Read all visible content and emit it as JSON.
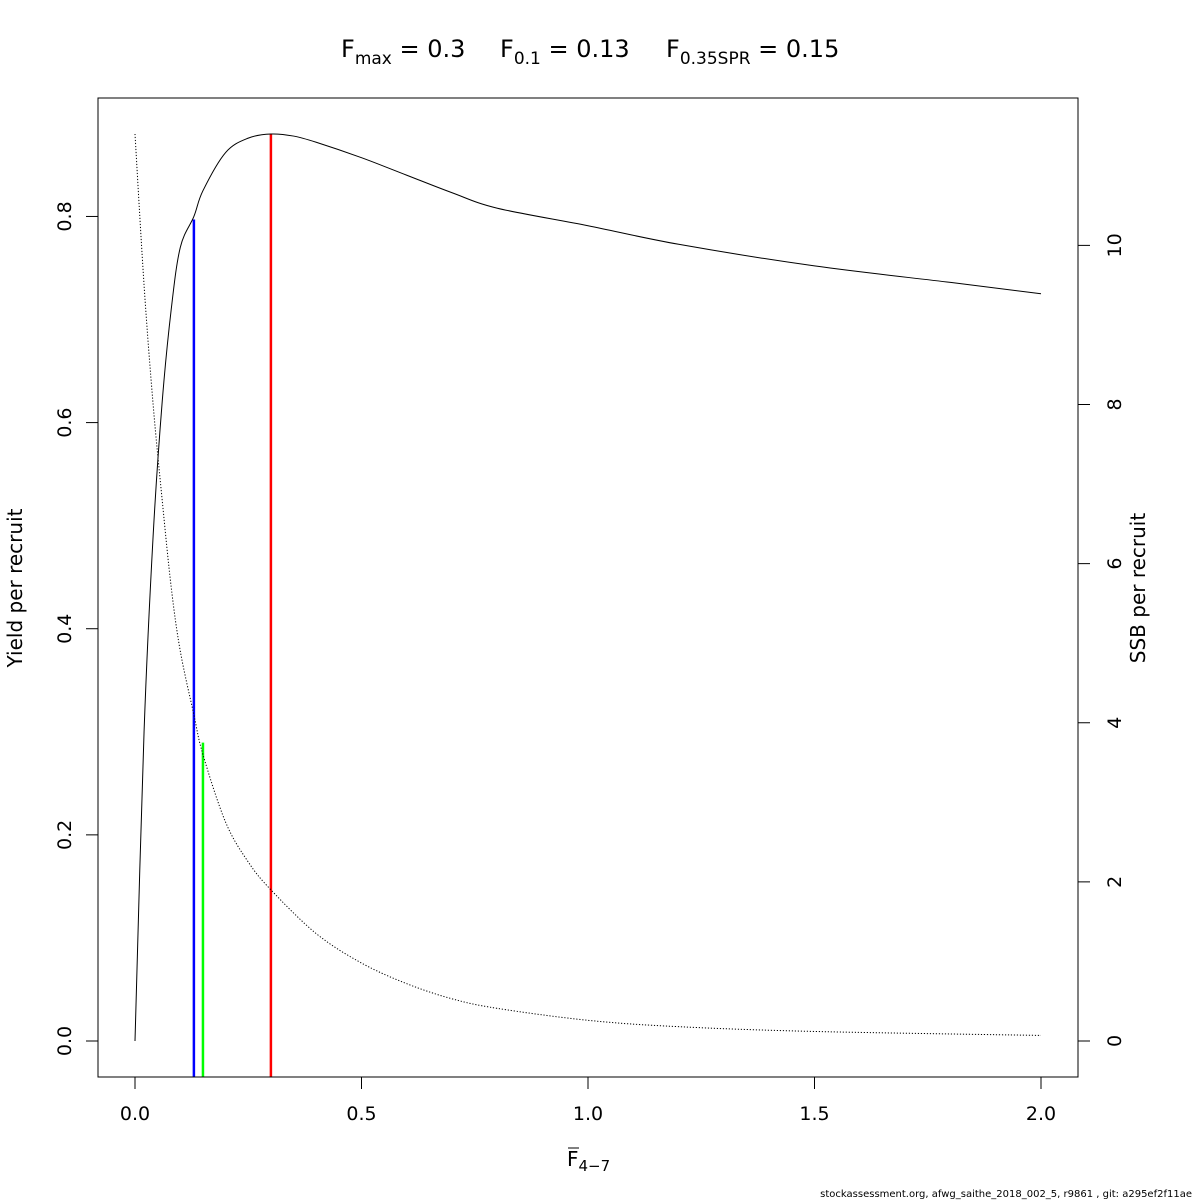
{
  "title": {
    "fmax": {
      "symbol": "F",
      "sub": "max",
      "text": " = 0.3"
    },
    "f01": {
      "symbol": "F",
      "sub": "0.1",
      "text": " = 0.13"
    },
    "fspr": {
      "symbol": "F",
      "sub": "0.35SPR",
      "text": " = 0.15"
    }
  },
  "axes": {
    "xlabel": {
      "symbol": "F",
      "sub": "4−7"
    },
    "ylabel_left": "Yield per recruit",
    "ylabel_right": "SSB per recruit"
  },
  "footer": "stockassessment.org, afwg_saithe_2018_002_5, r9861 , git: a295ef2f11ae",
  "colors": {
    "axis": "#000000",
    "fmax": "#ff0000",
    "f01": "#0000ff",
    "fspr": "#00ff00"
  },
  "chart_data": {
    "type": "line",
    "x_range": [
      0,
      2
    ],
    "x_ticks": [
      "0.0",
      "0.5",
      "1.0",
      "1.5",
      "2.0"
    ],
    "y_left_range": [
      0,
      0.88
    ],
    "y_left_ticks": [
      "0.0",
      "0.2",
      "0.4",
      "0.6",
      "0.8"
    ],
    "y_right_range": [
      0,
      11.4
    ],
    "y_right_ticks": [
      "0",
      "2",
      "4",
      "6",
      "8",
      "10"
    ],
    "series": [
      {
        "axis": "left",
        "style": "solid",
        "x": [
          0,
          0.02,
          0.04,
          0.06,
          0.08,
          0.1,
          0.13,
          0.15,
          0.2,
          0.25,
          0.3,
          0.35,
          0.4,
          0.5,
          0.6,
          0.7,
          0.8,
          1.0,
          1.2,
          1.5,
          1.8,
          2.0
        ],
        "y": [
          0,
          0.3,
          0.49,
          0.62,
          0.71,
          0.77,
          0.8,
          0.825,
          0.862,
          0.876,
          0.88,
          0.878,
          0.872,
          0.857,
          0.84,
          0.823,
          0.808,
          0.791,
          0.773,
          0.752,
          0.736,
          0.725
        ]
      },
      {
        "axis": "right",
        "style": "dotted",
        "x": [
          0,
          0.02,
          0.04,
          0.06,
          0.08,
          0.1,
          0.13,
          0.15,
          0.2,
          0.25,
          0.3,
          0.4,
          0.5,
          0.6,
          0.7,
          0.8,
          1.0,
          1.2,
          1.5,
          2.0
        ],
        "y": [
          11.4,
          9.5,
          8.0,
          6.8,
          5.7,
          4.9,
          4.1,
          3.6,
          2.75,
          2.25,
          1.9,
          1.35,
          0.98,
          0.72,
          0.53,
          0.41,
          0.26,
          0.18,
          0.12,
          0.07
        ]
      }
    ],
    "reference_lines": [
      {
        "name": "Fmax",
        "x": 0.3,
        "y_top": 0.88,
        "color": "#ff0000"
      },
      {
        "name": "F0.1",
        "x": 0.13,
        "y_top": 0.797,
        "color": "#0000ff"
      },
      {
        "name": "F0.35SPR",
        "x": 0.15,
        "y_top": 3.75,
        "y_top_axis": "right",
        "color": "#00ff00"
      }
    ]
  }
}
